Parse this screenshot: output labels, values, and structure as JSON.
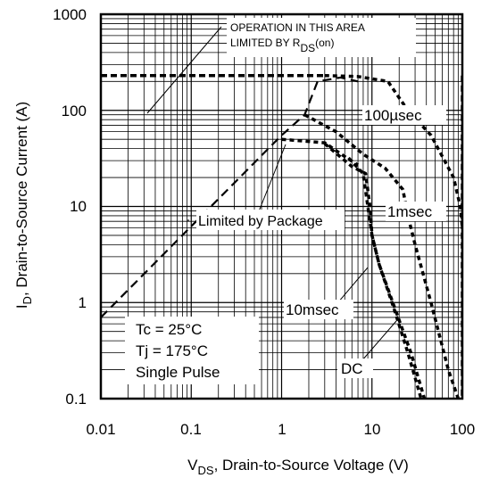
{
  "chart_data": {
    "type": "line",
    "x_scale": "log",
    "y_scale": "log",
    "xlim": [
      0.01,
      100
    ],
    "ylim": [
      0.1,
      1000
    ],
    "grid": true,
    "x_ticks": [
      "0.01",
      "0.1",
      "1",
      "10",
      "100"
    ],
    "y_ticks": [
      "1000",
      "100",
      "10",
      "1",
      "0.1"
    ],
    "xlabel": {
      "main": "V",
      "sub": "DS",
      "rest": ", Drain-to-Source Voltage (V)"
    },
    "ylabel": {
      "main": "I",
      "sub": "D",
      "rest": ",  Drain-to-Source Current (A)"
    },
    "annotations": {
      "rds_line1": "OPERATION IN THIS AREA",
      "rds_line2_a": "LIMITED BY R",
      "rds_line2_sub": "DS",
      "rds_line2_b": "(on)",
      "package": "Limited by Package",
      "us100": "100µsec",
      "ms1": "1msec",
      "ms10": "10msec",
      "dc": "DC",
      "cond1": "Tc = 25°C",
      "cond2": "Tj = 175°C",
      "cond3": "Single Pulse"
    },
    "series": [
      {
        "label_ref": "ms10",
        "style": "long-dash",
        "x": [
          0.01,
          1.0,
          1.8,
          2.5,
          4.5,
          7.0
        ],
        "y": [
          0.7,
          55,
          90,
          200,
          220,
          200
        ]
      },
      {
        "label_ref": "package",
        "style": "short-dash",
        "x": [
          1.0,
          3.0,
          5.0,
          7.0
        ],
        "y": [
          50,
          46,
          33,
          27
        ]
      },
      {
        "label_ref": "us100",
        "style": "short-dash",
        "x": [
          3.0,
          7.0,
          15.0,
          25.0,
          45.0,
          80.0,
          95.0,
          100.0
        ],
        "y": [
          230,
          225,
          200,
          100,
          55,
          20,
          10,
          6
        ]
      },
      {
        "label_ref": "ms1",
        "style": "short-dash",
        "x": [
          1.8,
          4.0,
          8.0,
          14.0,
          22.0,
          25.0,
          30.0,
          45.0,
          70.0,
          90.0
        ],
        "y": [
          90,
          60,
          35,
          25,
          15,
          8,
          4,
          1.0,
          0.2,
          0.1
        ]
      },
      {
        "label_ref": "ms10",
        "style": "short-dash",
        "x": [
          3.0,
          6.0,
          8.5,
          9.5,
          10.0,
          12.0,
          17.0,
          27.0,
          38.0
        ],
        "y": [
          45,
          26,
          22,
          10,
          5,
          2.5,
          1.0,
          0.3,
          0.1
        ]
      },
      {
        "label_ref": "dc",
        "style": "short-dash",
        "x": [
          5.5,
          8.0,
          9.0,
          10.0,
          12.0,
          18.0,
          25.0,
          35.0
        ],
        "y": [
          32,
          22,
          10,
          5,
          2.5,
          0.8,
          0.3,
          0.1
        ]
      },
      {
        "label_ref": "rds",
        "style": "bold-dash",
        "x": [
          0.01,
          3.2
        ],
        "y": [
          230,
          230
        ]
      },
      {
        "label_ref": "rds",
        "style": "bold-dash",
        "x": [
          100,
          100
        ],
        "y": [
          230,
          0.1
        ]
      }
    ]
  }
}
